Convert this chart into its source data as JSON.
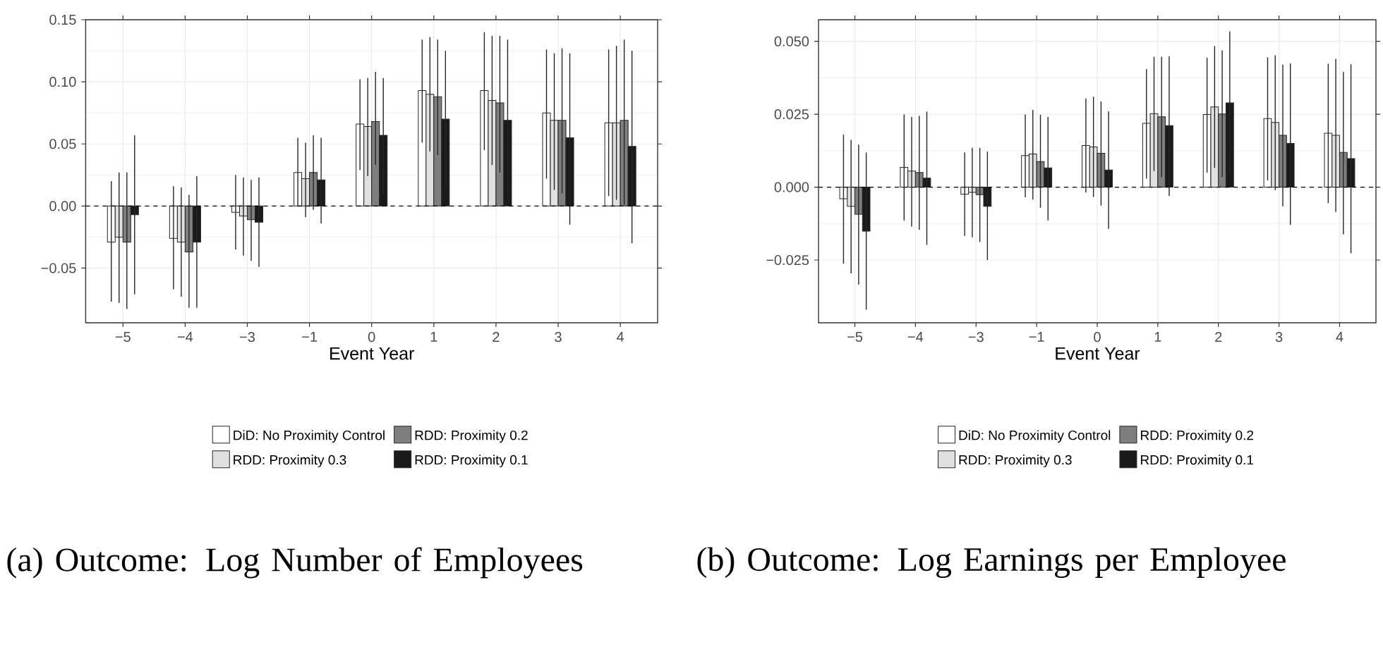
{
  "chart_data": [
    {
      "type": "bar",
      "title": "(a) Outcome: Log Number of Employees",
      "xlabel": "Event Year",
      "categories": [
        "−5",
        "−4",
        "−3",
        "−1",
        "0",
        "1",
        "2",
        "3",
        "4"
      ],
      "series": [
        {
          "name": "DiD: No Proximity Control",
          "color": "#ffffff",
          "values": [
            -0.029,
            -0.026,
            -0.005,
            0.027,
            0.066,
            0.093,
            0.093,
            0.075,
            0.067
          ],
          "errors": [
            [
              -0.077,
              0.02
            ],
            [
              -0.067,
              0.016
            ],
            [
              -0.035,
              0.025
            ],
            [
              0.0,
              0.055
            ],
            [
              0.029,
              0.102
            ],
            [
              0.051,
              0.134
            ],
            [
              0.045,
              0.14
            ],
            [
              0.022,
              0.126
            ],
            [
              0.008,
              0.126
            ]
          ]
        },
        {
          "name": "RDD: Proximity 0.3",
          "color": "#e0e0e0",
          "values": [
            -0.025,
            -0.029,
            -0.008,
            0.022,
            0.064,
            0.09,
            0.085,
            0.069,
            0.067
          ],
          "errors": [
            [
              -0.078,
              0.027
            ],
            [
              -0.073,
              0.015
            ],
            [
              -0.04,
              0.023
            ],
            [
              -0.009,
              0.051
            ],
            [
              0.024,
              0.103
            ],
            [
              0.044,
              0.136
            ],
            [
              0.033,
              0.137
            ],
            [
              0.013,
              0.123
            ],
            [
              0.005,
              0.129
            ]
          ]
        },
        {
          "name": "RDD: Proximity 0.2",
          "color": "#7f7f7f",
          "values": [
            -0.029,
            -0.037,
            -0.011,
            0.027,
            0.068,
            0.088,
            0.083,
            0.069,
            0.069
          ],
          "errors": [
            [
              -0.083,
              0.027
            ],
            [
              -0.082,
              0.009
            ],
            [
              -0.044,
              0.021
            ],
            [
              -0.003,
              0.057
            ],
            [
              0.033,
              0.108
            ],
            [
              0.041,
              0.134
            ],
            [
              0.027,
              0.137
            ],
            [
              0.01,
              0.127
            ],
            [
              0.001,
              0.134
            ]
          ]
        },
        {
          "name": "RDD: Proximity 0.1",
          "color": "#1a1a1a",
          "values": [
            -0.007,
            -0.029,
            -0.013,
            0.021,
            0.057,
            0.07,
            0.069,
            0.055,
            0.048
          ],
          "errors": [
            [
              -0.071,
              0.057
            ],
            [
              -0.082,
              0.024
            ],
            [
              -0.049,
              0.023
            ],
            [
              -0.014,
              0.055
            ],
            [
              0.01,
              0.103
            ],
            [
              0.015,
              0.125
            ],
            [
              0.007,
              0.134
            ],
            [
              -0.015,
              0.123
            ],
            [
              -0.03,
              0.125
            ]
          ]
        }
      ],
      "ylim": [
        -0.094,
        0.15
      ],
      "yticks": [
        {
          "value": -0.05,
          "label": "−0.05"
        },
        {
          "value": 0,
          "label": "0.00"
        },
        {
          "value": 0.05,
          "label": "0.05"
        },
        {
          "value": 0.1,
          "label": "0.10"
        },
        {
          "value": 0.15,
          "label": "0.15"
        }
      ],
      "ref_lines": [
        {
          "axis": "y",
          "value": 0,
          "line_style": "dashed"
        }
      ],
      "grid": true,
      "legend": "bottom"
    },
    {
      "type": "bar",
      "title": "(b) Outcome: Log Earnings per Employee",
      "xlabel": "Event Year",
      "categories": [
        "−5",
        "−4",
        "−3",
        "−1",
        "0",
        "1",
        "2",
        "3",
        "4"
      ],
      "series": [
        {
          "name": "DiD: No Proximity Control",
          "color": "#ffffff",
          "values": [
            -0.004,
            0.0068,
            -0.0024,
            0.0108,
            0.0143,
            0.0219,
            0.0249,
            0.0235,
            0.0185
          ],
          "errors": [
            [
              -0.0262,
              0.018
            ],
            [
              -0.0114,
              0.0249
            ],
            [
              -0.0167,
              0.0119
            ],
            [
              -0.0035,
              0.0249
            ],
            [
              -0.0018,
              0.0304
            ],
            [
              0.003,
              0.0405
            ],
            [
              0.005,
              0.0444
            ],
            [
              0.0023,
              0.0445
            ],
            [
              -0.0055,
              0.0423
            ]
          ]
        },
        {
          "name": "RDD: Proximity 0.3",
          "color": "#e0e0e0",
          "values": [
            -0.0066,
            0.0055,
            -0.0018,
            0.0114,
            0.0138,
            0.0252,
            0.0275,
            0.0222,
            0.0178
          ],
          "errors": [
            [
              -0.0296,
              0.0162
            ],
            [
              -0.0135,
              0.0241
            ],
            [
              -0.0172,
              0.0135
            ],
            [
              -0.0043,
              0.0265
            ],
            [
              -0.0034,
              0.031
            ],
            [
              0.0055,
              0.0447
            ],
            [
              0.0066,
              0.0484
            ],
            [
              -0.001,
              0.0452
            ],
            [
              -0.0085,
              0.044
            ]
          ]
        },
        {
          "name": "RDD: Proximity 0.2",
          "color": "#7f7f7f",
          "values": [
            -0.0093,
            0.005,
            -0.0026,
            0.0088,
            0.0116,
            0.0241,
            0.0251,
            0.0178,
            0.0119
          ],
          "errors": [
            [
              -0.0334,
              0.0146
            ],
            [
              -0.0146,
              0.0244
            ],
            [
              -0.0188,
              0.0135
            ],
            [
              -0.0071,
              0.0248
            ],
            [
              -0.0063,
              0.0294
            ],
            [
              0.0034,
              0.0447
            ],
            [
              0.0034,
              0.0469
            ],
            [
              -0.0066,
              0.042
            ],
            [
              -0.0162,
              0.0395
            ]
          ]
        },
        {
          "name": "RDD: Proximity 0.1",
          "color": "#1a1a1a",
          "values": [
            -0.0151,
            0.0031,
            -0.0066,
            0.0066,
            0.0059,
            0.0211,
            0.0289,
            0.015,
            0.0098
          ],
          "errors": [
            [
              -0.042,
              0.0119
            ],
            [
              -0.0198,
              0.0259
            ],
            [
              -0.025,
              0.0122
            ],
            [
              -0.0114,
              0.0241
            ],
            [
              -0.0143,
              0.026
            ],
            [
              -0.003,
              0.0449
            ],
            [
              0.0047,
              0.0534
            ],
            [
              -0.013,
              0.0424
            ],
            [
              -0.0227,
              0.0421
            ]
          ]
        }
      ],
      "ylim": [
        -0.0465,
        0.0574
      ],
      "yticks": [
        {
          "value": -0.025,
          "label": "−0.025"
        },
        {
          "value": 0,
          "label": "0.000"
        },
        {
          "value": 0.025,
          "label": "0.025"
        },
        {
          "value": 0.05,
          "label": "0.050"
        }
      ],
      "ref_lines": [
        {
          "axis": "y",
          "value": 0,
          "line_style": "dashed"
        }
      ],
      "grid": true,
      "legend": "bottom"
    }
  ]
}
